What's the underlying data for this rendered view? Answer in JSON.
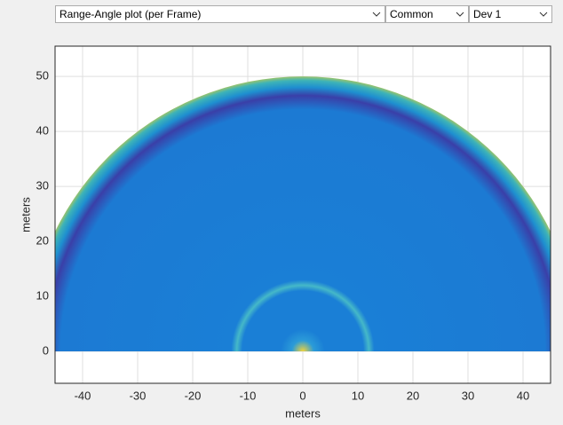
{
  "toolbar": {
    "plot_select": "Range-Angle plot (per Frame)",
    "mode_select": "Common",
    "device_select": "Dev 1"
  },
  "chart_data": {
    "type": "heatmap",
    "xlabel": "meters",
    "ylabel": "meters",
    "xlim": [
      -45,
      45
    ],
    "ylim": [
      -5.8,
      55.5
    ],
    "xticks": [
      -40,
      -30,
      -20,
      -10,
      0,
      10,
      20,
      30,
      40
    ],
    "yticks": [
      0,
      10,
      20,
      30,
      40,
      50
    ],
    "grid": true
  }
}
